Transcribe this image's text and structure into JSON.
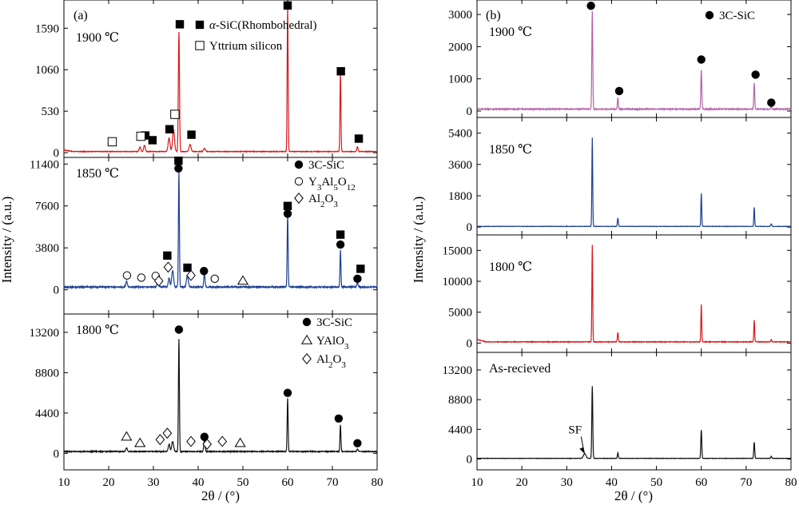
{
  "figure": {
    "left_label": "(a)",
    "right_label": "(b)",
    "x_label": "2θ / (°)",
    "y_label": "Intensity / (a.u.)"
  },
  "chart_data": [
    {
      "type": "line",
      "id": "a1900",
      "column": "a",
      "condition_label": "1900 ℃",
      "color": "#d8181c",
      "xlim": [
        10,
        80
      ],
      "x_ticks": [
        10,
        20,
        30,
        40,
        50,
        60,
        70,
        80
      ],
      "ylim": [
        -60,
        1950
      ],
      "y_ticks": [
        0,
        530,
        1060,
        1590
      ],
      "baseline": 15,
      "peaks": [
        {
          "x": 27.0,
          "y": 60,
          "w": 0.25
        },
        {
          "x": 28.0,
          "y": 80,
          "w": 0.25
        },
        {
          "x": 33.5,
          "y": 170,
          "w": 0.3
        },
        {
          "x": 34.5,
          "y": 280,
          "w": 0.3
        },
        {
          "x": 35.7,
          "y": 1530,
          "w": 0.18
        },
        {
          "x": 38.2,
          "y": 90,
          "w": 0.3
        },
        {
          "x": 41.4,
          "y": 40,
          "w": 0.3
        },
        {
          "x": 60.0,
          "y": 1850,
          "w": 0.15
        },
        {
          "x": 71.8,
          "y": 1000,
          "w": 0.15
        },
        {
          "x": 75.6,
          "y": 60,
          "w": 0.2
        }
      ],
      "markers": [
        {
          "type": "square_filled",
          "x": 35.9,
          "y": 1640
        },
        {
          "type": "square_filled",
          "x": 60.0,
          "y": 1880
        },
        {
          "type": "square_filled",
          "x": 71.9,
          "y": 1040
        },
        {
          "type": "square_filled",
          "x": 28.2,
          "y": 220
        },
        {
          "type": "square_filled",
          "x": 29.8,
          "y": 160
        },
        {
          "type": "square_filled",
          "x": 33.6,
          "y": 300
        },
        {
          "type": "square_filled",
          "x": 38.5,
          "y": 230
        },
        {
          "type": "square_filled",
          "x": 75.9,
          "y": 180
        },
        {
          "type": "square_open",
          "x": 20.8,
          "y": 140
        },
        {
          "type": "square_open",
          "x": 27.2,
          "y": 210
        },
        {
          "type": "square_open",
          "x": 34.8,
          "y": 490
        }
      ],
      "legend": [
        {
          "marker": "square_filled",
          "prefix": "α",
          "label": "-SiC(Rhombohedral)"
        },
        {
          "marker": "square_open",
          "label": "Yttrium silicon"
        }
      ]
    },
    {
      "type": "line",
      "id": "a1850",
      "column": "a",
      "condition_label": "1850 ℃",
      "color": "#1c3f94",
      "xlim": [
        10,
        80
      ],
      "x_ticks": [
        10,
        20,
        30,
        40,
        50,
        60,
        70,
        80
      ],
      "ylim": [
        -2200,
        12000
      ],
      "y_ticks": [
        0,
        3800,
        7600,
        11400
      ],
      "baseline": 250,
      "peaks": [
        {
          "x": 24.0,
          "y": 500,
          "w": 0.25
        },
        {
          "x": 31.0,
          "y": 500,
          "w": 0.25
        },
        {
          "x": 33.5,
          "y": 800,
          "w": 0.25
        },
        {
          "x": 34.3,
          "y": 1500,
          "w": 0.3
        },
        {
          "x": 35.7,
          "y": 10500,
          "w": 0.15
        },
        {
          "x": 37.6,
          "y": 1000,
          "w": 0.3
        },
        {
          "x": 41.4,
          "y": 1200,
          "w": 0.2
        },
        {
          "x": 60.0,
          "y": 6500,
          "w": 0.15
        },
        {
          "x": 71.8,
          "y": 3300,
          "w": 0.15
        },
        {
          "x": 75.6,
          "y": 400,
          "w": 0.2
        }
      ],
      "markers": [
        {
          "type": "square_filled",
          "x": 35.6,
          "y": 11700
        },
        {
          "type": "circle_filled",
          "x": 35.6,
          "y": 11000
        },
        {
          "type": "square_filled",
          "x": 60.0,
          "y": 7600
        },
        {
          "type": "circle_filled",
          "x": 60.0,
          "y": 6900
        },
        {
          "type": "square_filled",
          "x": 71.8,
          "y": 5000
        },
        {
          "type": "circle_filled",
          "x": 71.8,
          "y": 4100
        },
        {
          "type": "square_filled",
          "x": 76.3,
          "y": 1900
        },
        {
          "type": "circle_filled",
          "x": 75.6,
          "y": 1000
        },
        {
          "type": "square_filled",
          "x": 33.1,
          "y": 3100
        },
        {
          "type": "square_filled",
          "x": 37.6,
          "y": 2000
        },
        {
          "type": "circle_filled",
          "x": 41.3,
          "y": 1700
        },
        {
          "type": "circle_open",
          "x": 24.1,
          "y": 1300
        },
        {
          "type": "circle_open",
          "x": 27.3,
          "y": 1100
        },
        {
          "type": "circle_open",
          "x": 30.5,
          "y": 1250
        },
        {
          "type": "circle_open",
          "x": 43.7,
          "y": 1000
        },
        {
          "type": "diamond_open",
          "x": 31.2,
          "y": 800
        },
        {
          "type": "diamond_open",
          "x": 33.3,
          "y": 2050
        },
        {
          "type": "diamond_open",
          "x": 38.4,
          "y": 1300
        },
        {
          "type": "triangle_open",
          "x": 50.0,
          "y": 800
        }
      ],
      "legend": [
        {
          "marker": "circle_filled",
          "label": "3C-SiC"
        },
        {
          "marker": "circle_open",
          "label": "Y",
          "sub1": "3",
          "mid1": "Al",
          "sub2": "5",
          "mid2": "O",
          "sub3": "12"
        },
        {
          "marker": "diamond_open",
          "label": "Al",
          "sub1": "2",
          "mid1": "O",
          "sub2": "3"
        }
      ]
    },
    {
      "type": "line",
      "id": "a1800",
      "column": "a",
      "condition_label": "1800 ℃",
      "color": "#111111",
      "xlim": [
        10,
        80
      ],
      "x_ticks": [
        10,
        20,
        30,
        40,
        50,
        60,
        70,
        80
      ],
      "ylim": [
        -1800,
        15200
      ],
      "y_ticks": [
        0,
        4400,
        8800,
        13200
      ],
      "baseline": 200,
      "peaks": [
        {
          "x": 24.0,
          "y": 400,
          "w": 0.25
        },
        {
          "x": 33.5,
          "y": 800,
          "w": 0.25
        },
        {
          "x": 34.3,
          "y": 1100,
          "w": 0.3
        },
        {
          "x": 35.7,
          "y": 12300,
          "w": 0.15
        },
        {
          "x": 41.4,
          "y": 1200,
          "w": 0.2
        },
        {
          "x": 60.0,
          "y": 5800,
          "w": 0.15
        },
        {
          "x": 71.8,
          "y": 2900,
          "w": 0.15
        },
        {
          "x": 75.6,
          "y": 300,
          "w": 0.2
        }
      ],
      "markers": [
        {
          "type": "circle_filled",
          "x": 35.7,
          "y": 13500
        },
        {
          "type": "circle_filled",
          "x": 60.0,
          "y": 6600
        },
        {
          "type": "circle_filled",
          "x": 71.4,
          "y": 3800
        },
        {
          "type": "circle_filled",
          "x": 41.4,
          "y": 1800
        },
        {
          "type": "circle_filled",
          "x": 75.6,
          "y": 1100
        },
        {
          "type": "triangle_open",
          "x": 24.0,
          "y": 1800
        },
        {
          "type": "triangle_open",
          "x": 27.0,
          "y": 1100
        },
        {
          "type": "triangle_open",
          "x": 49.4,
          "y": 1100
        },
        {
          "type": "diamond_open",
          "x": 31.5,
          "y": 1500
        },
        {
          "type": "diamond_open",
          "x": 33.1,
          "y": 2200
        },
        {
          "type": "diamond_open",
          "x": 38.4,
          "y": 1300
        },
        {
          "type": "diamond_open",
          "x": 42.0,
          "y": 1000
        },
        {
          "type": "diamond_open",
          "x": 45.4,
          "y": 1300
        }
      ],
      "legend": [
        {
          "marker": "circle_filled",
          "label": "3C-SiC"
        },
        {
          "marker": "triangle_open",
          "label": "YAlO",
          "sub1": "3"
        },
        {
          "marker": "diamond_open",
          "label": "Al",
          "sub1": "2",
          "mid1": "O",
          "sub2": "3"
        }
      ]
    },
    {
      "type": "line",
      "id": "b1900",
      "column": "b",
      "condition_label": "1900 ℃",
      "color": "#b462a8",
      "xlim": [
        10,
        80
      ],
      "x_ticks": [
        10,
        20,
        30,
        40,
        50,
        60,
        70,
        80
      ],
      "ylim": [
        -200,
        3450
      ],
      "y_ticks": [
        0,
        1000,
        2000,
        3000
      ],
      "baseline": 60,
      "peaks": [
        {
          "x": 35.7,
          "y": 3050,
          "w": 0.15
        },
        {
          "x": 41.4,
          "y": 350,
          "w": 0.15
        },
        {
          "x": 60.0,
          "y": 1230,
          "w": 0.15
        },
        {
          "x": 71.8,
          "y": 800,
          "w": 0.15
        },
        {
          "x": 75.6,
          "y": 80,
          "w": 0.15
        }
      ],
      "markers": [
        {
          "type": "circle_filled",
          "x": 35.4,
          "y": 3270
        },
        {
          "type": "circle_filled",
          "x": 41.7,
          "y": 620
        },
        {
          "type": "circle_filled",
          "x": 60.0,
          "y": 1600
        },
        {
          "type": "circle_filled",
          "x": 72.1,
          "y": 1130
        },
        {
          "type": "circle_filled",
          "x": 75.6,
          "y": 260
        }
      ],
      "legend": [
        {
          "marker": "circle_filled",
          "label": "3C-SiC"
        }
      ]
    },
    {
      "type": "line",
      "id": "b1850",
      "column": "b",
      "condition_label": "1850 ℃",
      "color": "#1c3f94",
      "xlim": [
        10,
        80
      ],
      "x_ticks": [
        10,
        20,
        30,
        40,
        50,
        60,
        70,
        80
      ],
      "ylim": [
        -450,
        6300
      ],
      "y_ticks": [
        0,
        1800,
        3600,
        5400
      ],
      "baseline": 40,
      "peaks": [
        {
          "x": 35.7,
          "y": 5100,
          "w": 0.13
        },
        {
          "x": 41.4,
          "y": 480,
          "w": 0.15
        },
        {
          "x": 60.0,
          "y": 1900,
          "w": 0.13
        },
        {
          "x": 71.8,
          "y": 1100,
          "w": 0.13
        },
        {
          "x": 75.6,
          "y": 150,
          "w": 0.15
        }
      ],
      "markers": [],
      "legend": []
    },
    {
      "type": "line",
      "id": "b1800",
      "column": "b",
      "condition_label": "1800 ℃",
      "color": "#d8181c",
      "xlim": [
        10,
        80
      ],
      "x_ticks": [
        10,
        20,
        30,
        40,
        50,
        60,
        70,
        80
      ],
      "ylim": [
        -1500,
        17500
      ],
      "y_ticks": [
        0,
        5000,
        10000,
        15000
      ],
      "baseline": 200,
      "peaks": [
        {
          "x": 35.7,
          "y": 15700,
          "w": 0.13
        },
        {
          "x": 41.4,
          "y": 1500,
          "w": 0.15
        },
        {
          "x": 60.0,
          "y": 6000,
          "w": 0.13
        },
        {
          "x": 71.8,
          "y": 3500,
          "w": 0.13
        },
        {
          "x": 75.6,
          "y": 400,
          "w": 0.15
        }
      ],
      "markers": [],
      "legend": []
    },
    {
      "type": "line",
      "id": "bAsRec",
      "column": "b",
      "condition_label": "As-recieved",
      "color": "#111111",
      "xlim": [
        10,
        80
      ],
      "x_ticks": [
        10,
        20,
        30,
        40,
        50,
        60,
        70,
        80
      ],
      "ylim": [
        -1600,
        15800
      ],
      "y_ticks": [
        0,
        4400,
        8800,
        13200
      ],
      "baseline": 100,
      "peaks": [
        {
          "x": 34.0,
          "y": 700,
          "w": 0.4
        },
        {
          "x": 35.7,
          "y": 10700,
          "w": 0.15
        },
        {
          "x": 41.4,
          "y": 800,
          "w": 0.15
        },
        {
          "x": 60.0,
          "y": 4200,
          "w": 0.15
        },
        {
          "x": 71.8,
          "y": 2400,
          "w": 0.15
        },
        {
          "x": 75.6,
          "y": 300,
          "w": 0.15
        }
      ],
      "markers": [],
      "annotations": [
        {
          "text": "SF",
          "text_x": 31.8,
          "text_y": 3800,
          "arrow_x": 34.1,
          "arrow_y": 700
        }
      ],
      "legend": []
    }
  ]
}
